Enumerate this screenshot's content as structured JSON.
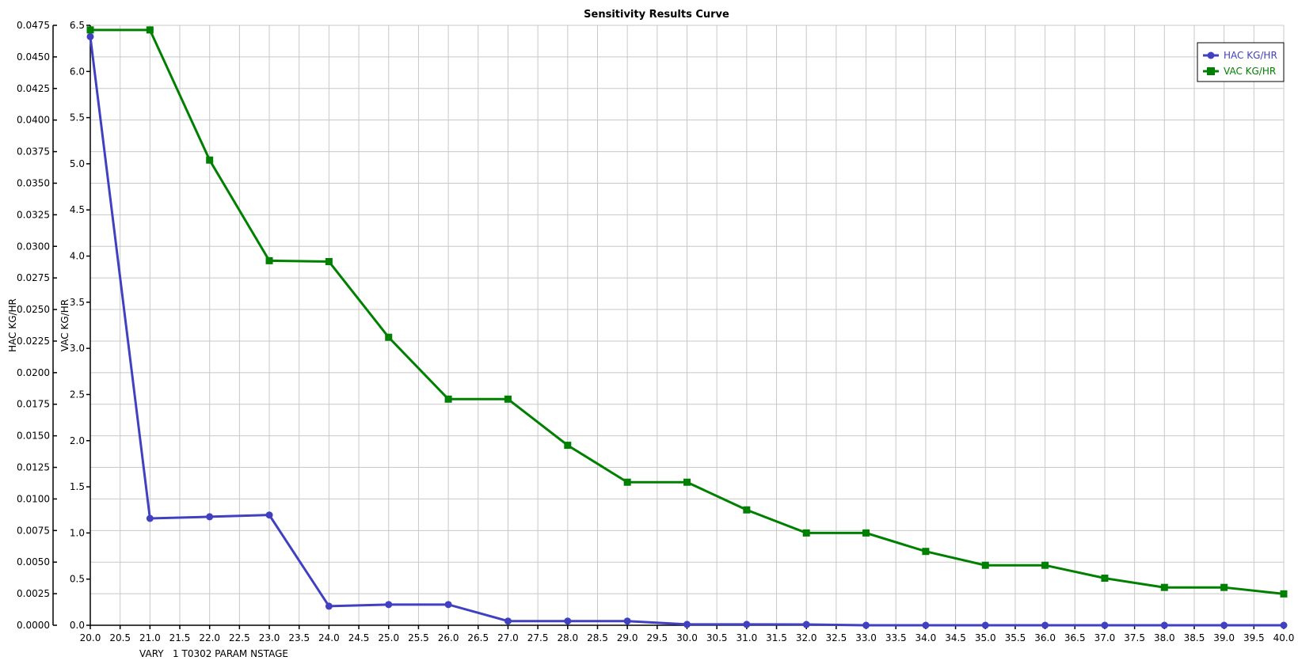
{
  "chart_data": {
    "type": "line",
    "title": "Sensitivity Results Curve",
    "xlabel": "VARY   1 T0302 PARAM NSTAGE",
    "ylabel_left": "HAC KG/HR",
    "ylabel_right": "VAC KG/HR",
    "xlim": [
      20.0,
      40.0
    ],
    "xtick_step": 0.5,
    "ylim_left": [
      0.0,
      0.0475
    ],
    "ytick_step_left": 0.0025,
    "ylim_second": [
      0.0,
      6.5
    ],
    "ytick_step_second": 0.5,
    "grid": true,
    "legend_placement": "top-right",
    "x": [
      20,
      21,
      22,
      23,
      24,
      25,
      26,
      27,
      28,
      29,
      30,
      31,
      32,
      33,
      34,
      35,
      36,
      37,
      38,
      39,
      40
    ],
    "series": [
      {
        "name": "HAC KG/HR",
        "axis": "left",
        "color": "#4040c0",
        "marker": "circle",
        "values": [
          0.0466,
          0.00846,
          0.00859,
          0.00873,
          0.00151,
          0.00164,
          0.00164,
          0.00033,
          0.00033,
          0.00033,
          7e-05,
          7e-05,
          6e-05,
          0,
          0,
          0,
          0,
          0,
          0,
          0,
          0
        ]
      },
      {
        "name": "VAC KG/HR",
        "axis": "second",
        "color": "#008000",
        "marker": "square",
        "values": [
          6.45,
          6.45,
          5.04,
          3.95,
          3.94,
          3.12,
          2.45,
          2.45,
          1.95,
          1.55,
          1.55,
          1.25,
          1.0,
          1.0,
          0.8,
          0.65,
          0.65,
          0.51,
          0.41,
          0.41,
          0.34
        ]
      }
    ]
  }
}
